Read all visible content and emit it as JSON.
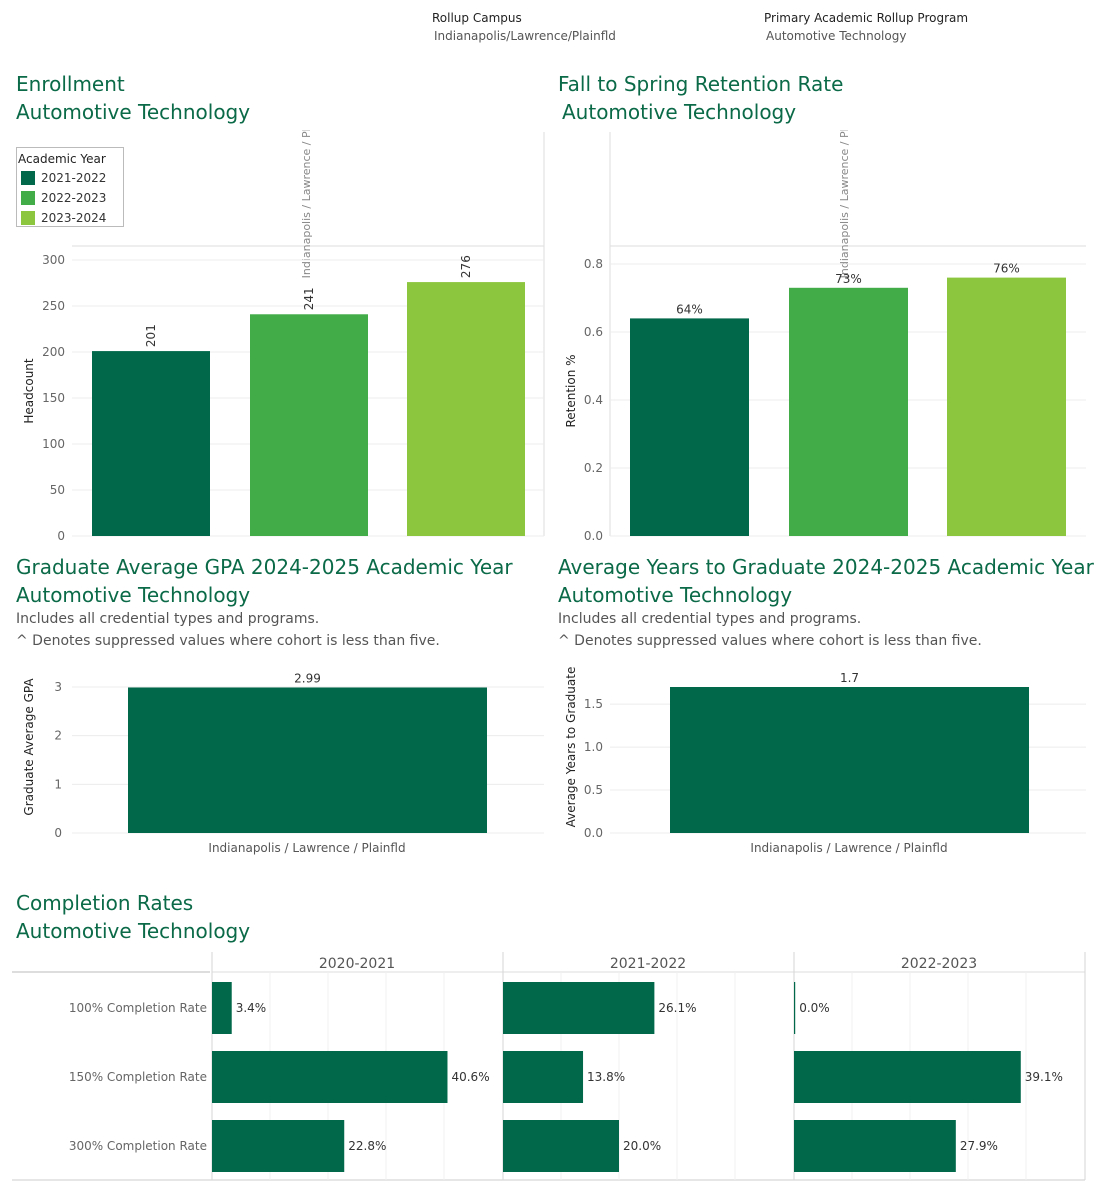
{
  "filters": {
    "campus_title": "Rollup Campus",
    "campus_value": "Indianapolis/Lawrence/Plainfld",
    "program_title": "Primary Academic Rollup Program",
    "program_value": "Automotive Technology"
  },
  "colors": {
    "dark": "#02684a",
    "mid": "#41ac48",
    "light": "#8cc63f",
    "heading": "#0b6a48"
  },
  "enrollment": {
    "title": "Enrollment",
    "subtitle": "Automotive Technology",
    "column_header": "Indianapolis / Lawrence / Plainfld",
    "legend_title": "Academic Year",
    "legend": [
      "2021-2022",
      "2022-2023",
      "2023-2024"
    ]
  },
  "retention": {
    "title": "Fall to Spring Retention Rate",
    "subtitle": "Automotive Technology",
    "column_header": "Indianapolis / Lawrence / Plainfld"
  },
  "gpa": {
    "title": "Graduate Average GPA 2024-2025 Academic Year",
    "subtitle": "Automotive Technology",
    "note1": "Includes all credential types and programs.",
    "note2": "^ Denotes suppressed values where cohort is less than five."
  },
  "years": {
    "title": "Average Years to Graduate 2024-2025 Academic Year",
    "subtitle": "Automotive Technology",
    "note1": "Includes all credential types and programs.",
    "note2": "^ Denotes suppressed values where cohort is less than five."
  },
  "completion": {
    "title": "Completion Rates",
    "subtitle": "Automotive Technology"
  },
  "chart_data": [
    {
      "type": "bar",
      "id": "enrollment",
      "categories": [
        "2021-2022",
        "2022-2023",
        "2023-2024"
      ],
      "values": [
        201,
        241,
        276
      ],
      "labels": [
        "201",
        "241",
        "276"
      ],
      "ylabel": "Headcount",
      "ylim": [
        0,
        300
      ],
      "yticks": [
        0,
        50,
        100,
        150,
        200,
        250,
        300
      ],
      "grid": true
    },
    {
      "type": "bar",
      "id": "retention",
      "categories": [
        "2021-2022",
        "2022-2023",
        "2023-2024"
      ],
      "values": [
        0.64,
        0.73,
        0.76
      ],
      "labels": [
        "64%",
        "73%",
        "76%"
      ],
      "ylabel": "Retention %",
      "ylim": [
        0,
        0.8
      ],
      "yticks": [
        "0.0",
        "0.2",
        "0.4",
        "0.6",
        "0.8"
      ],
      "grid": true
    },
    {
      "type": "bar",
      "id": "gpa",
      "categories": [
        "Indianapolis / Lawrence / Plainfld"
      ],
      "values": [
        2.99
      ],
      "labels": [
        "2.99"
      ],
      "ylabel": "Graduate Average GPA",
      "ylim": [
        0,
        3
      ],
      "yticks": [
        "0",
        "1",
        "2",
        "3"
      ],
      "grid": true
    },
    {
      "type": "bar",
      "id": "years",
      "categories": [
        "Indianapolis / Lawrence / Plainfld"
      ],
      "values": [
        1.7
      ],
      "labels": [
        "1.7"
      ],
      "ylabel": "Average Years to Graduate",
      "ylim": [
        0,
        1.7
      ],
      "yticks": [
        "0.0",
        "0.5",
        "1.0",
        "1.5"
      ],
      "grid": true
    },
    {
      "type": "bar",
      "id": "completion",
      "orientation": "horizontal",
      "rows": [
        "100% Completion Rate",
        "150% Completion Rate",
        "300% Completion Rate"
      ],
      "panels": [
        {
          "name": "2020-2021",
          "values": [
            3.4,
            40.6,
            22.8
          ],
          "labels": [
            "3.4%",
            "40.6%",
            "22.8%"
          ]
        },
        {
          "name": "2021-2022",
          "values": [
            26.1,
            13.8,
            20.0
          ],
          "labels": [
            "26.1%",
            "13.8%",
            "20.0%"
          ]
        },
        {
          "name": "2022-2023",
          "values": [
            0.0,
            39.1,
            27.9
          ],
          "labels": [
            "0.0%",
            "39.1%",
            "27.9%"
          ]
        }
      ]
    }
  ]
}
